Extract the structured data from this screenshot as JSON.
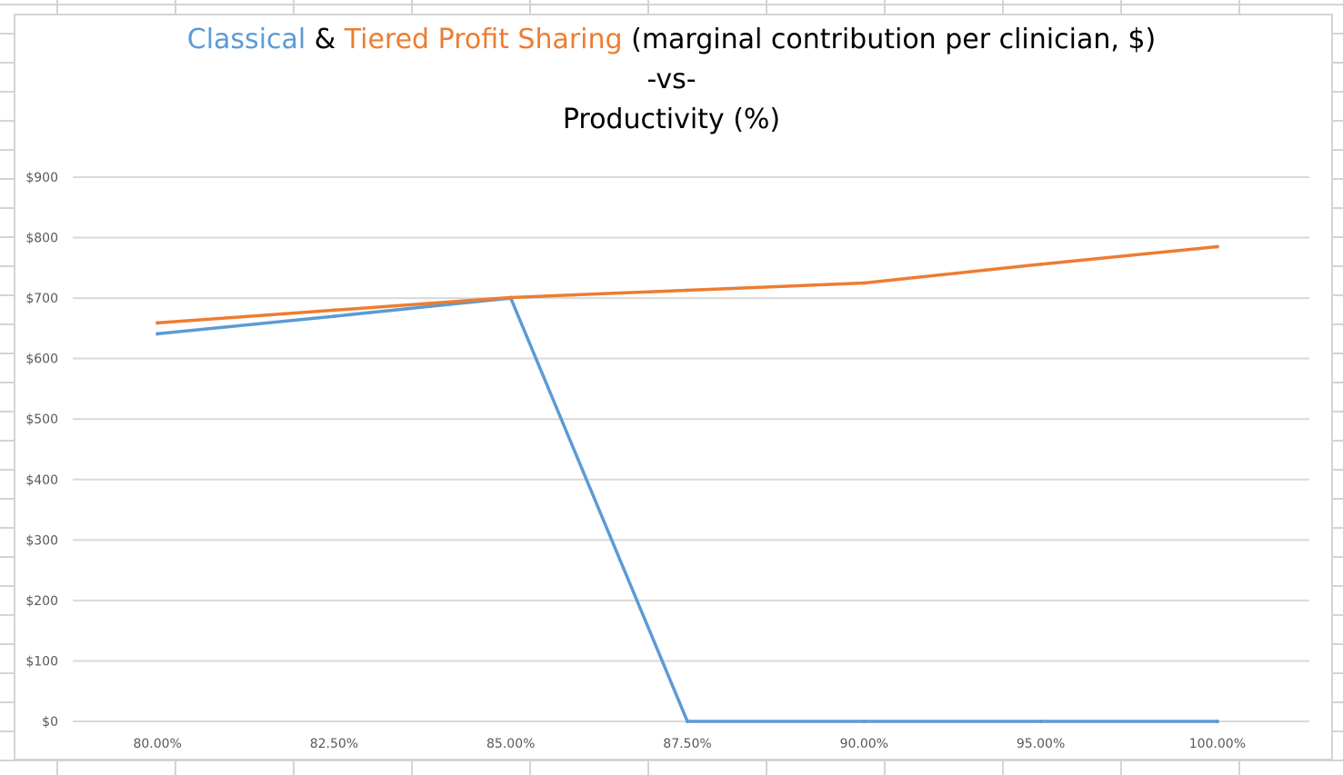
{
  "chart_data": {
    "type": "line",
    "title": {
      "part1": "Classical",
      "part2": " & ",
      "part3": "Tiered Profit Sharing",
      "part4": " (marginal contribution per clinician, $)",
      "line2": "-vs-",
      "line3": "Productivity (%)"
    },
    "categories": [
      "80.00%",
      "82.50%",
      "85.00%",
      "87.50%",
      "90.00%",
      "95.00%",
      "100.00%"
    ],
    "series": [
      {
        "key": "classical",
        "color": "#5b9bd5",
        "values": [
          641,
          670,
          700,
          0,
          0,
          0,
          0
        ]
      },
      {
        "key": "tiered",
        "color": "#ed7d31",
        "values": [
          659,
          680,
          701,
          713,
          725,
          756,
          785
        ]
      }
    ],
    "ylim": [
      0,
      900
    ],
    "yticks": [
      "$0",
      "$100",
      "$200",
      "$300",
      "$400",
      "$500",
      "$600",
      "$700",
      "$800",
      "$900"
    ],
    "grid": true,
    "legend": "none"
  }
}
